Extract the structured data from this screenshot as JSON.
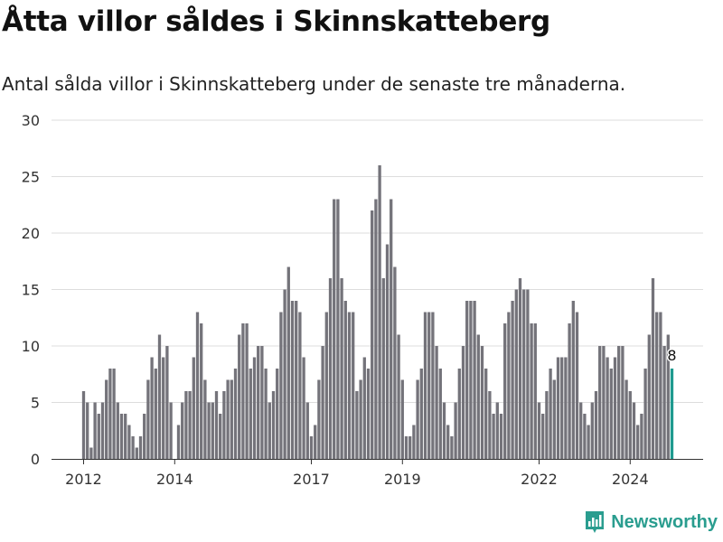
{
  "title": "Åtta villor såldes i Skinnskatteberg",
  "subtitle": "Antal sålda villor i Skinnskatteberg under de senaste tre månaderna.",
  "brand": "Newsworthy",
  "colors": {
    "bar": "#74737a",
    "highlight": "#1f9a8f",
    "grid": "#dddddd",
    "brand": "#2a9d8f"
  },
  "chart_data": {
    "type": "bar",
    "x_start": "2012-01",
    "ylim": [
      0,
      30
    ],
    "yticks": [
      0,
      5,
      10,
      15,
      20,
      25,
      30
    ],
    "xticks": [
      {
        "month": "2012-01",
        "label": "2012"
      },
      {
        "month": "2014-01",
        "label": "2014"
      },
      {
        "month": "2017-01",
        "label": "2017"
      },
      {
        "month": "2019-01",
        "label": "2019"
      },
      {
        "month": "2022-01",
        "label": "2022"
      },
      {
        "month": "2024-01",
        "label": "2024"
      }
    ],
    "values": [
      6,
      5,
      1,
      5,
      4,
      5,
      7,
      8,
      8,
      5,
      4,
      4,
      3,
      2,
      1,
      2,
      4,
      7,
      9,
      8,
      11,
      9,
      10,
      5,
      0,
      3,
      5,
      6,
      6,
      9,
      13,
      12,
      7,
      5,
      5,
      6,
      4,
      6,
      7,
      7,
      8,
      11,
      12,
      12,
      8,
      9,
      10,
      10,
      8,
      5,
      6,
      8,
      13,
      15,
      17,
      14,
      14,
      13,
      9,
      5,
      2,
      3,
      7,
      10,
      13,
      16,
      23,
      23,
      16,
      14,
      13,
      13,
      6,
      7,
      9,
      8,
      22,
      23,
      26,
      16,
      19,
      23,
      17,
      11,
      7,
      2,
      2,
      3,
      7,
      8,
      13,
      13,
      13,
      10,
      8,
      5,
      3,
      2,
      5,
      8,
      10,
      14,
      14,
      14,
      11,
      10,
      8,
      6,
      4,
      5,
      4,
      12,
      13,
      14,
      15,
      16,
      15,
      15,
      12,
      12,
      5,
      4,
      6,
      8,
      7,
      9,
      9,
      9,
      12,
      14,
      13,
      5,
      4,
      3,
      5,
      6,
      10,
      10,
      9,
      8,
      9,
      10,
      10,
      7,
      6,
      5,
      3,
      4,
      8,
      11,
      16,
      13,
      13,
      10,
      11,
      8
    ],
    "highlight_index": 155,
    "annotation": "8"
  }
}
